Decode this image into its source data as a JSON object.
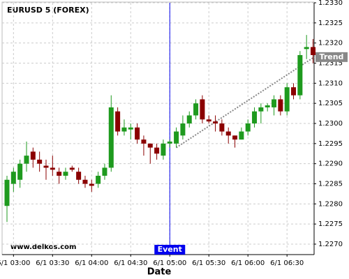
{
  "chart_data": {
    "type": "candlestick",
    "title": "EURUSD 5 (FOREX)",
    "watermark": "www.delkos.com",
    "x_label": "Date",
    "categories": [
      null,
      "6/1 03:00",
      null,
      null,
      null,
      null,
      null,
      "6/1 03:30",
      null,
      null,
      null,
      null,
      null,
      "6/1 04:00",
      null,
      null,
      null,
      null,
      null,
      "6/1 04:30",
      null,
      null,
      null,
      null,
      null,
      "6/1 05:00",
      null,
      null,
      null,
      null,
      null,
      "6/1 05:30",
      null,
      null,
      null,
      null,
      null,
      "6/1 06:00",
      null,
      null,
      null,
      null,
      null,
      "6/1 06:30",
      null,
      null,
      null,
      null
    ],
    "open": [
      1.22795,
      1.2285,
      1.2286,
      1.229,
      1.2293,
      1.2291,
      1.22895,
      1.2289,
      1.2288,
      1.2287,
      1.2289,
      1.2288,
      1.2286,
      1.2285,
      1.2285,
      1.2287,
      1.2289,
      1.2303,
      1.2298,
      1.22985,
      1.2299,
      1.2296,
      1.2295,
      1.2294,
      1.2292,
      1.2295,
      1.2295,
      1.2297,
      1.23,
      1.2302,
      1.2306,
      1.2301,
      1.23005,
      1.23,
      1.2298,
      1.2297,
      1.2296,
      1.2298,
      1.23,
      1.2303,
      1.2304,
      1.2304,
      1.2306,
      1.2303,
      1.2309,
      1.2307,
      1.23185,
      1.2319
    ],
    "high": [
      1.2287,
      1.2289,
      1.2291,
      1.22955,
      1.2294,
      1.2293,
      1.2291,
      1.2292,
      1.2289,
      1.2289,
      1.22895,
      1.2289,
      1.2287,
      1.2286,
      1.2288,
      1.229,
      1.2307,
      1.2304,
      1.2301,
      1.23,
      1.23,
      1.2297,
      1.2295,
      1.2295,
      1.2296,
      1.2296,
      1.2299,
      1.2302,
      1.2303,
      1.2306,
      1.2307,
      1.2302,
      1.2302,
      1.2301,
      1.2299,
      1.2297,
      1.2299,
      1.2301,
      1.2304,
      1.2305,
      1.2305,
      1.2307,
      1.2307,
      1.231,
      1.231,
      1.2318,
      1.2322,
      1.2321
    ],
    "low": [
      1.22755,
      1.2283,
      1.2284,
      1.2288,
      1.2289,
      1.2288,
      1.2286,
      1.2287,
      1.2285,
      1.2286,
      1.2288,
      1.2285,
      1.2284,
      1.2283,
      1.2284,
      1.2286,
      1.2288,
      1.2297,
      1.2297,
      1.2296,
      1.2295,
      1.2292,
      1.229,
      1.2291,
      1.2291,
      1.2294,
      1.2294,
      1.2296,
      1.2299,
      1.2301,
      1.23,
      1.23,
      1.2298,
      1.2297,
      1.2295,
      1.2294,
      1.2296,
      1.2297,
      1.2299,
      1.23,
      1.2303,
      1.2302,
      1.2302,
      1.2302,
      1.2306,
      1.2306,
      1.2316,
      1.2315
    ],
    "close": [
      1.2286,
      1.2288,
      1.229,
      1.2292,
      1.2291,
      1.229,
      1.2289,
      1.22885,
      1.2287,
      1.2288,
      1.22885,
      1.2286,
      1.2285,
      1.22845,
      1.2287,
      1.2289,
      1.2304,
      1.2298,
      1.2299,
      1.2299,
      1.2296,
      1.2295,
      1.2294,
      1.22925,
      1.2295,
      1.22955,
      1.2298,
      1.23,
      1.2302,
      1.2305,
      1.2301,
      1.23005,
      1.23,
      1.2298,
      1.2297,
      1.2296,
      1.2298,
      1.23,
      1.2303,
      1.2304,
      1.23045,
      1.2306,
      1.2303,
      1.2309,
      1.2307,
      1.2317,
      1.2319,
      1.2317
    ],
    "up_color": "#1e9a1e",
    "down_color": "#8b0000",
    "ylim": [
      1.22674,
      1.233
    ],
    "yticks": [
      {
        "value": 1.227,
        "label": "1.2270"
      },
      1.2275,
      {
        "value": 1.228,
        "label": "1.2280"
      },
      1.2285,
      {
        "value": 1.229,
        "label": "1.2290"
      },
      1.2295,
      {
        "value": 1.23,
        "label": "1.2300"
      },
      1.2305,
      {
        "value": 1.231,
        "label": "1.2310"
      },
      1.2315,
      {
        "value": 1.232,
        "label": "1.2320"
      },
      1.2325,
      {
        "value": 1.233,
        "label": "1.2330"
      }
    ],
    "grid": true,
    "event": {
      "label": "Event",
      "x": "6/1 05:00",
      "color": "#0000ee"
    },
    "trend": {
      "label": "Trend",
      "start": 1.2294,
      "end": 1.23165,
      "color": "#888888"
    }
  }
}
